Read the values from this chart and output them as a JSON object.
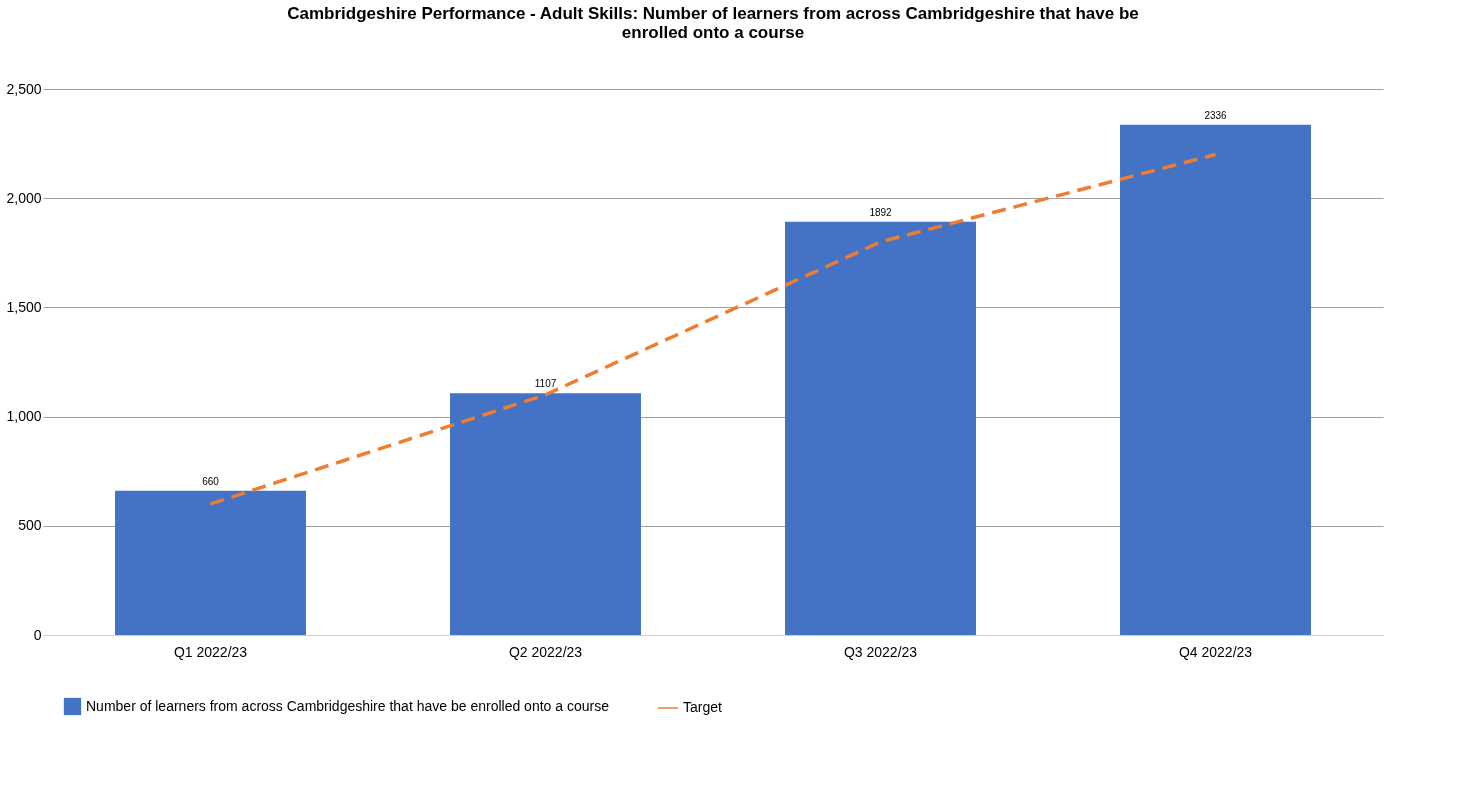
{
  "chart_data": {
    "type": "bar",
    "title": "Cambridgeshire Performance - Adult Skills: Number of learners from across Cambridgeshire that have be enrolled onto a course",
    "categories": [
      "Q1 2022/23",
      "Q2 2022/23",
      "Q3 2022/23",
      "Q4 2022/23"
    ],
    "series": [
      {
        "name": "Number of learners from across Cambridgeshire that have be enrolled onto a course",
        "color": "#4472c4",
        "values": [
          660,
          1107,
          1892,
          2336
        ]
      },
      {
        "name": "Target",
        "type": "line",
        "color": "#ed7d31",
        "line_style": "dashed",
        "values": [
          600,
          1100,
          1800,
          2200
        ]
      }
    ],
    "ylim": [
      0,
      2500
    ],
    "yticks": [
      0,
      {
        "value": 500,
        "label": "500"
      },
      {
        "value": 1000,
        "label": "1,000"
      },
      {
        "value": 1500,
        "label": "1,500"
      },
      {
        "value": 2000,
        "label": "2,000"
      },
      {
        "value": 2500,
        "label": "2,500"
      }
    ],
    "grid": "y",
    "legend": "bottom",
    "value_labels": [
      [
        "660",
        "1107",
        "1892",
        "2336"
      ],
      null
    ]
  }
}
